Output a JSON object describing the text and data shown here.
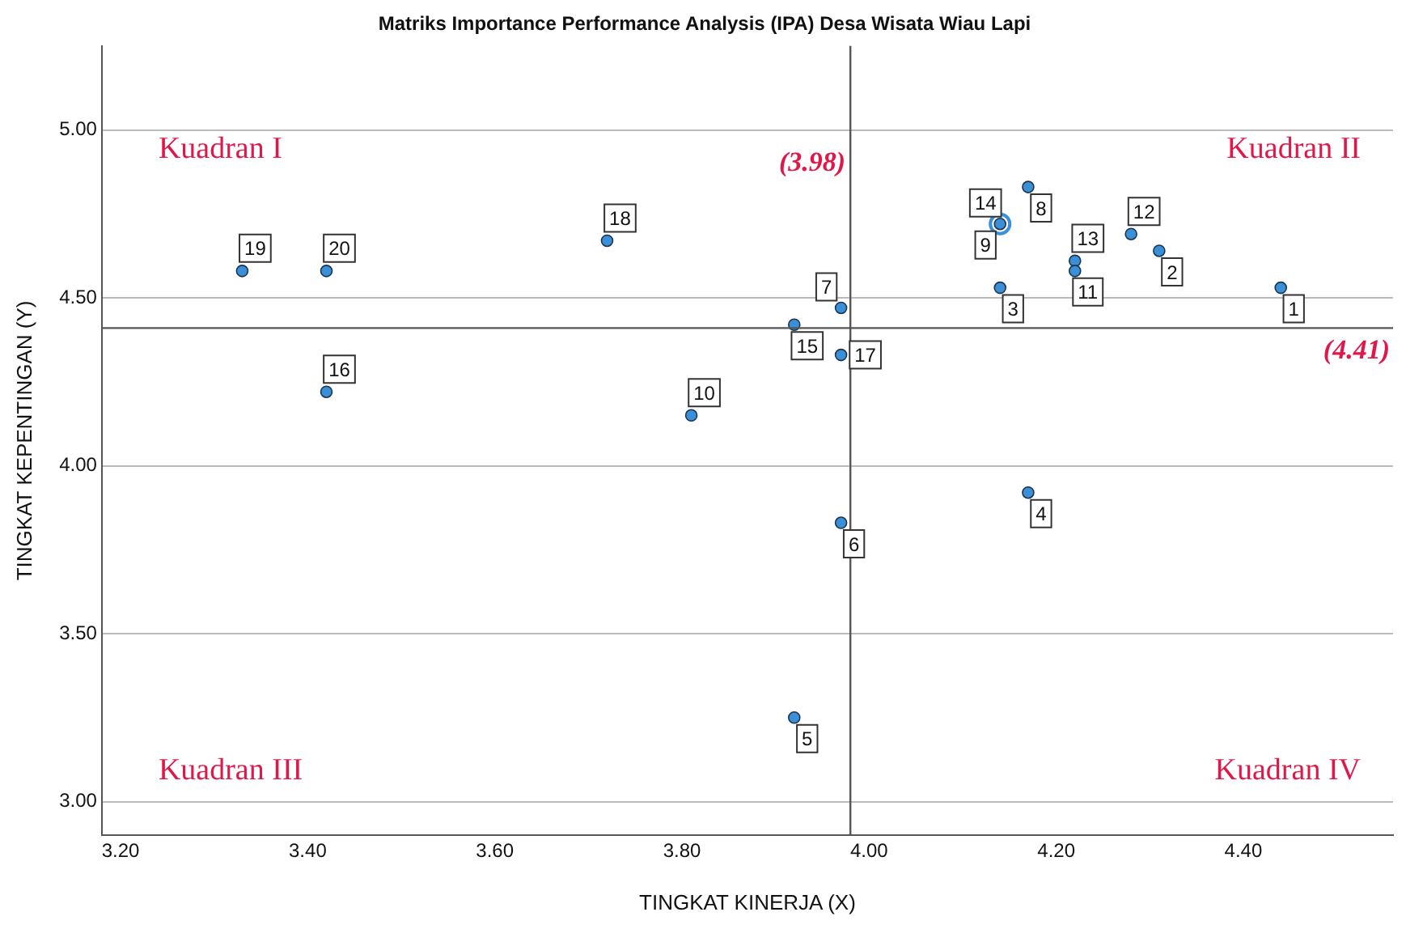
{
  "chart_data": {
    "type": "scatter",
    "title": "Matriks Importance Performance Analysis (IPA) Desa Wisata Wiau Lapi",
    "xlabel": "TINGKAT KINERJA (X)",
    "ylabel": "TINGKAT KEPENTINGAN (Y)",
    "series": [
      {
        "name": "1",
        "color": "#3a8fd6",
        "x": [
          4.44
        ],
        "values": [
          4.53
        ]
      },
      {
        "name": "2",
        "color": "#3a8fd6",
        "x": [
          4.31
        ],
        "values": [
          4.64
        ]
      },
      {
        "name": "3",
        "color": "#3a8fd6",
        "x": [
          4.14
        ],
        "values": [
          4.53
        ]
      },
      {
        "name": "4",
        "color": "#3a8fd6",
        "x": [
          4.17
        ],
        "values": [
          3.92
        ]
      },
      {
        "name": "5",
        "color": "#3a8fd6",
        "x": [
          3.92
        ],
        "values": [
          3.25
        ]
      },
      {
        "name": "6",
        "color": "#3a8fd6",
        "x": [
          3.97
        ],
        "values": [
          3.83
        ]
      },
      {
        "name": "7",
        "color": "#3a8fd6",
        "x": [
          3.97
        ],
        "values": [
          4.47
        ]
      },
      {
        "name": "8",
        "color": "#3a8fd6",
        "x": [
          4.17
        ],
        "values": [
          4.83
        ]
      },
      {
        "name": "9",
        "color": "#3a8fd6",
        "x": [
          4.14
        ],
        "values": [
          4.72
        ]
      },
      {
        "name": "10",
        "color": "#3a8fd6",
        "x": [
          3.81
        ],
        "values": [
          4.15
        ]
      },
      {
        "name": "11",
        "color": "#3a8fd6",
        "x": [
          4.22
        ],
        "values": [
          4.58
        ]
      },
      {
        "name": "12",
        "color": "#3a8fd6",
        "x": [
          4.28
        ],
        "values": [
          4.69
        ]
      },
      {
        "name": "13",
        "color": "#3a8fd6",
        "x": [
          4.22
        ],
        "values": [
          4.61
        ]
      },
      {
        "name": "14",
        "color": "#3a8fd6",
        "x": [
          4.14
        ],
        "values": [
          4.72
        ]
      },
      {
        "name": "15",
        "color": "#3a8fd6",
        "x": [
          3.92
        ],
        "values": [
          4.42
        ]
      },
      {
        "name": "16",
        "color": "#3a8fd6",
        "x": [
          3.42
        ],
        "values": [
          4.22
        ]
      },
      {
        "name": "17",
        "color": "#3a8fd6",
        "x": [
          3.97
        ],
        "values": [
          4.33
        ]
      },
      {
        "name": "18",
        "color": "#3a8fd6",
        "x": [
          3.72
        ],
        "values": [
          4.67
        ]
      },
      {
        "name": "19",
        "color": "#3a8fd6",
        "x": [
          3.33
        ],
        "values": [
          4.58
        ]
      },
      {
        "name": "20",
        "color": "#3a8fd6",
        "x": [
          3.42
        ],
        "values": [
          4.58
        ]
      }
    ],
    "xlim": [
      3.18,
      4.56
    ],
    "ylim": [
      2.9,
      5.25
    ],
    "xticks": [
      {
        "value": 3.2,
        "label": "3.20"
      },
      {
        "value": 3.4,
        "label": "3.40"
      },
      {
        "value": 3.6,
        "label": "3.60"
      },
      {
        "value": 3.8,
        "label": "3.80"
      },
      {
        "value": 4.0,
        "label": "4.00"
      },
      {
        "value": 4.2,
        "label": "4.20"
      },
      {
        "value": 4.4,
        "label": "4.40"
      }
    ],
    "yticks": [
      {
        "value": 3.0,
        "label": "3.00"
      },
      {
        "value": 3.5,
        "label": "3.50"
      },
      {
        "value": 4.0,
        "label": "4.00"
      },
      {
        "value": 4.5,
        "label": "4.50"
      },
      {
        "value": 5.0,
        "label": "5.00"
      }
    ],
    "ref_lines": [
      {
        "axis": "x",
        "value": 3.98,
        "label": "(3.98)",
        "color": "#555555"
      },
      {
        "axis": "y",
        "value": 4.41,
        "label": "(4.41)",
        "color": "#555555"
      }
    ],
    "annotations": [
      "Kuadran I",
      "Kuadran II",
      "Kuadran III",
      "Kuadran IV"
    ],
    "grid": "y",
    "legend": false,
    "marker": "circle"
  }
}
